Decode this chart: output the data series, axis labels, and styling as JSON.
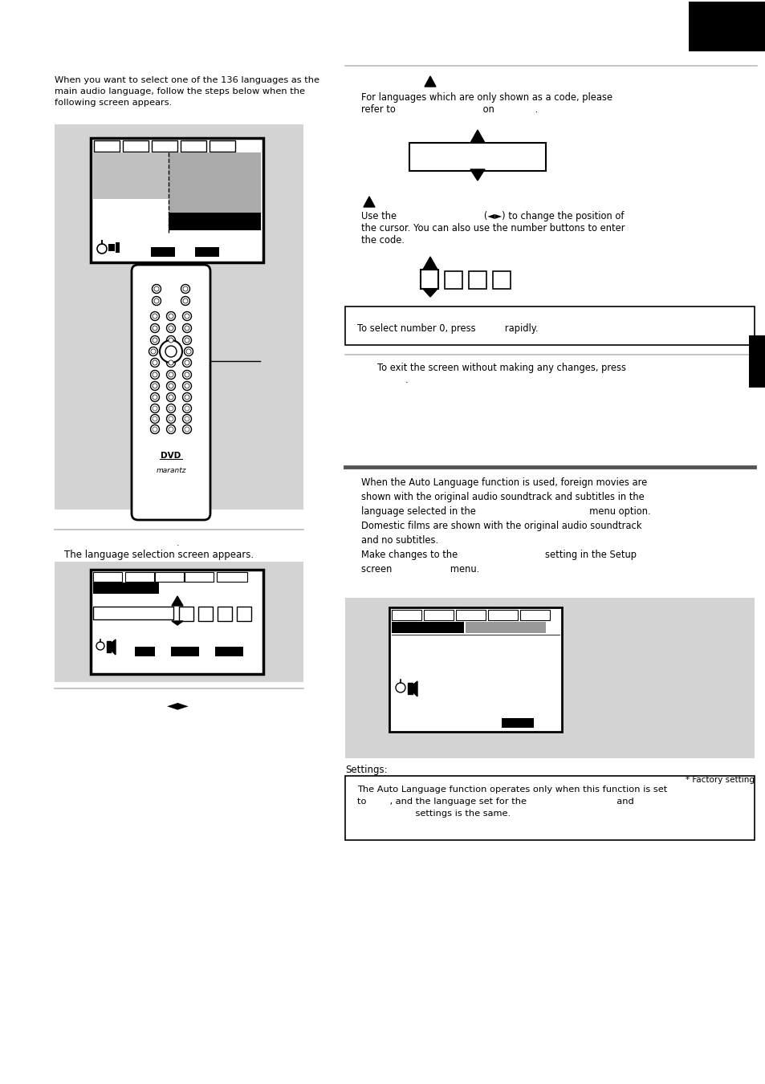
{
  "bg_color": "#ffffff",
  "gray_bg": "#d3d3d3",
  "text_color": "#000000",
  "divider_light": "#bbbbbb",
  "divider_dark": "#666666",
  "left_text1": "When you want to select one of the 136 languages as the\nmain audio language, follow the steps below when the\nfollowing screen appears.",
  "left_text2": "The language selection screen appears.",
  "right_note1_line1": "For languages which are only shown as a code, please",
  "right_note1_line2": "refer to                              on              .",
  "cursor_text_line1": "Use the                              (◄►) to change the position of",
  "cursor_text_line2": "the cursor. You can also use the number buttons to enter",
  "cursor_text_line3": "the code.",
  "box_note": "To select number 0, press          rapidly.",
  "exit_note_line1": "To exit the screen without making any changes, press",
  "exit_note_line2": ".",
  "auto_lang_text": "When the Auto Language function is used, foreign movies are\nshown with the original audio soundtrack and subtitles in the\nlanguage selected in the                                       menu option.\nDomestic films are shown with the original audio soundtrack\nand no subtitles.\nMake changes to the                              setting in the Setup\nscreen                    menu.",
  "settings_label": "Settings:",
  "factory_note": "* Factory setting",
  "bottom_note_line1": "The Auto Language function operates only when this function is set",
  "bottom_note_line2": "to        , and the language set for the                               and",
  "bottom_note_line3": "                    settings is the same."
}
